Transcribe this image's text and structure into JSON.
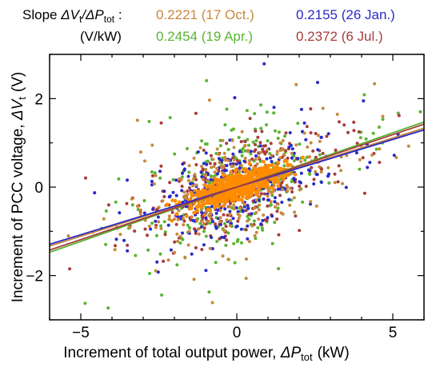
{
  "chart_data": {
    "type": "scatter",
    "xlabel": {
      "prefix": "Increment of total output power, ",
      "symbol": "ΔP",
      "sub": "tot",
      "unit": "(kW)"
    },
    "ylabel": {
      "prefix": "Increment of PCC voltage, ",
      "symbol": "ΔV",
      "sub": "t",
      "unit": "(V)"
    },
    "xlim": [
      -6,
      6
    ],
    "ylim": [
      -3,
      3
    ],
    "xticks": [
      -5,
      0,
      5
    ],
    "yticks": [
      -2,
      0,
      2
    ],
    "grid": false,
    "legend": {
      "placement": "top",
      "heading": {
        "prefix": "Slope ",
        "num": "ΔV",
        "num_sub": "t",
        "slash": "/",
        "den": "ΔP",
        "den_sub": "tot",
        "colon": " :"
      },
      "unit": "(V/kW)"
    },
    "series": [
      {
        "name": "0.2221 (17 Oct.)",
        "color": "#c8883c",
        "slope": 0.2221,
        "spread": 0.55
      },
      {
        "name": "0.2155 (26 Jan.)",
        "color": "#2a2ac8",
        "slope": 0.2155,
        "spread": 0.5
      },
      {
        "name": "0.2454 (19 Apr.)",
        "color": "#5ab432",
        "slope": 0.2454,
        "spread": 0.65
      },
      {
        "name": "0.2372 (6 Jul.)",
        "color": "#a83c3c",
        "slope": 0.2372,
        "spread": 0.5
      },
      {
        "color": "#ff8c00",
        "slope": 0.23,
        "spread": 0.15
      }
    ]
  }
}
